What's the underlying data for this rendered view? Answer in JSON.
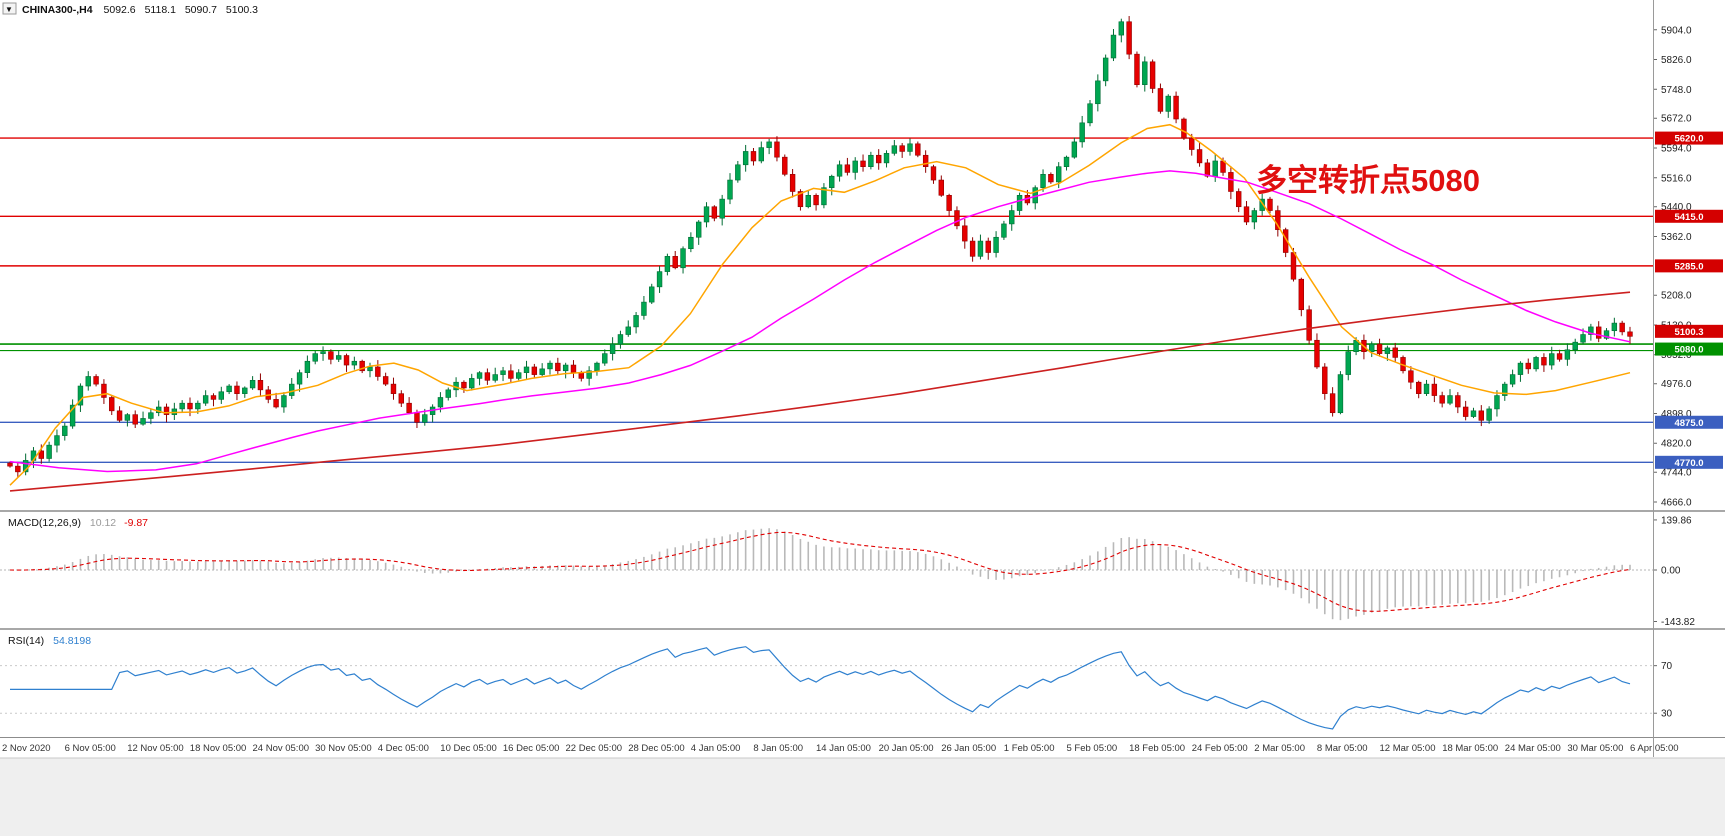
{
  "window": {
    "dropdown_icon": "▼",
    "symbol": "CHINA300-,H4",
    "open": "5092.6",
    "high": "5118.1",
    "low": "5090.7",
    "close": "5100.3"
  },
  "annotation": {
    "text": "多空转折点5080",
    "color": "#E01010"
  },
  "colors": {
    "bull": "#00A651",
    "bull_dark": "#006B33",
    "bear": "#E60000",
    "bear_dark": "#8F0000",
    "resistance_line": "#E00000",
    "pivot_line": "#009100",
    "support_line": "#3B5FC0",
    "macd_hist": "#B9B9B9",
    "macd_signal": "#E00000",
    "rsi_line": "#2F80CF"
  },
  "price_axis": {
    "labels": [
      "5904.0",
      "5826.0",
      "5748.0",
      "5672.0",
      "5594.0",
      "5516.0",
      "5440.0",
      "5362.0",
      "5208.0",
      "5130.0",
      "5052.0",
      "4976.0",
      "4898.0",
      "4820.0",
      "4744.0",
      "4666.0"
    ],
    "badges": [
      {
        "text": "5620.0",
        "price": 5620,
        "color": "#D40000",
        "dy": 0
      },
      {
        "text": "5415.0",
        "price": 5415,
        "color": "#D40000",
        "dy": 0
      },
      {
        "text": "5285.0",
        "price": 5285,
        "color": "#D40000",
        "dy": 0
      },
      {
        "text": "5100.3",
        "price": 5100.3,
        "color": "#D40000",
        "dy": -5
      },
      {
        "text": "5080.0",
        "price": 5080,
        "color": "#009100",
        "dy": 5
      },
      {
        "text": "4875.0",
        "price": 4875,
        "color": "#3B5FC0",
        "dy": 0
      },
      {
        "text": "4770.0",
        "price": 4770,
        "color": "#3B5FC0",
        "dy": 0
      }
    ]
  },
  "hlines": [
    {
      "price": 5620,
      "color": "#E00000",
      "width": 1.4
    },
    {
      "price": 5415,
      "color": "#E00000",
      "width": 1.4
    },
    {
      "price": 5285,
      "color": "#E00000",
      "width": 1.4
    },
    {
      "price": 5080,
      "color": "#009100",
      "width": 1.6
    },
    {
      "price": 5063,
      "color": "#009100",
      "width": 1.1
    },
    {
      "price": 4875,
      "color": "#3B5FC0",
      "width": 1.4
    },
    {
      "price": 4770,
      "color": "#3B5FC0",
      "width": 1.4
    }
  ],
  "time_axis": {
    "labels": [
      "2 Nov 2020",
      "6 Nov 05:00",
      "12 Nov 05:00",
      "18 Nov 05:00",
      "24 Nov 05:00",
      "30 Nov 05:00",
      "4 Dec 05:00",
      "10 Dec 05:00",
      "16 Dec 05:00",
      "22 Dec 05:00",
      "28 Dec 05:00",
      "4 Jan 05:00",
      "8 Jan 05:00",
      "14 Jan 05:00",
      "20 Jan 05:00",
      "26 Jan 05:00",
      "1 Feb 05:00",
      "5 Feb 05:00",
      "18 Feb 05:00",
      "24 Feb 05:00",
      "2 Mar 05:00",
      "8 Mar 05:00",
      "12 Mar 05:00",
      "18 Mar 05:00",
      "24 Mar 05:00",
      "30 Mar 05:00",
      "6 Apr 05:00"
    ]
  },
  "panels": {
    "macd": {
      "title": "MACD(12,26,9)",
      "value_main": "10.12",
      "value_signal": "-9.87",
      "axis": [
        {
          "text": "139.86",
          "value": 139.86
        },
        {
          "text": "0.00",
          "value": 0
        },
        {
          "text": "-143.82",
          "value": -143.82
        }
      ]
    },
    "rsi": {
      "title": "RSI(14)",
      "value": "54.8198"
    }
  },
  "chart_data": {
    "type": "candlestick",
    "symbol": "CHINA300-",
    "timeframe": "H4",
    "title": "CHINA300-,H4 5092.6 5118.1 5090.7 5100.3",
    "last_bar": {
      "open": 5092.6,
      "high": 5118.1,
      "low": 5090.7,
      "close": 5100.3
    },
    "x_range": [
      "2 Nov 2020",
      "6 Apr 05:00"
    ],
    "ylim": [
      4645,
      5982
    ],
    "open_first": 4768,
    "closes": [
      4760,
      4745,
      4775,
      4800,
      4780,
      4815,
      4840,
      4865,
      4920,
      4970,
      4995,
      4975,
      4940,
      4905,
      4880,
      4895,
      4870,
      4885,
      4900,
      4915,
      4895,
      4910,
      4925,
      4910,
      4925,
      4945,
      4935,
      4955,
      4970,
      4950,
      4965,
      4985,
      4960,
      4935,
      4915,
      4945,
      4975,
      5005,
      5035,
      5055,
      5060,
      5040,
      5050,
      5025,
      5035,
      5010,
      5020,
      4995,
      4975,
      4950,
      4925,
      4900,
      4875,
      4895,
      4915,
      4940,
      4960,
      4980,
      4965,
      4990,
      5005,
      4985,
      5000,
      5010,
      4990,
      5005,
      5020,
      5000,
      5015,
      5030,
      5010,
      5025,
      5005,
      4990,
      5010,
      5030,
      5055,
      5080,
      5105,
      5125,
      5155,
      5190,
      5230,
      5270,
      5310,
      5280,
      5330,
      5360,
      5400,
      5440,
      5410,
      5460,
      5510,
      5550,
      5585,
      5560,
      5595,
      5610,
      5570,
      5525,
      5480,
      5440,
      5470,
      5445,
      5490,
      5520,
      5550,
      5530,
      5560,
      5545,
      5575,
      5555,
      5580,
      5600,
      5585,
      5605,
      5575,
      5545,
      5510,
      5470,
      5430,
      5390,
      5350,
      5310,
      5350,
      5320,
      5360,
      5395,
      5430,
      5470,
      5450,
      5490,
      5525,
      5505,
      5545,
      5570,
      5610,
      5660,
      5710,
      5770,
      5830,
      5890,
      5925,
      5840,
      5760,
      5820,
      5750,
      5690,
      5730,
      5670,
      5620,
      5590,
      5555,
      5520,
      5560,
      5530,
      5480,
      5440,
      5400,
      5430,
      5460,
      5430,
      5380,
      5320,
      5250,
      5170,
      5090,
      5020,
      4950,
      4900,
      5000,
      5060,
      5090,
      5060,
      5080,
      5055,
      5070,
      5045,
      5010,
      4980,
      4950,
      4975,
      4945,
      4925,
      4945,
      4915,
      4890,
      4905,
      4880,
      4910,
      4945,
      4975,
      5000,
      5030,
      5015,
      5045,
      5025,
      5055,
      5040,
      5065,
      5085,
      5105,
      5125,
      5095,
      5115,
      5135,
      5112,
      5100.3
    ],
    "moving_averages": [
      {
        "name": "fast-ma",
        "color": "#FFA500",
        "width": 1.5,
        "points": [
          [
            0.0,
            4710
          ],
          [
            0.012,
            4760
          ],
          [
            0.028,
            4860
          ],
          [
            0.045,
            4940
          ],
          [
            0.06,
            4950
          ],
          [
            0.075,
            4925
          ],
          [
            0.095,
            4900
          ],
          [
            0.115,
            4902
          ],
          [
            0.135,
            4918
          ],
          [
            0.152,
            4942
          ],
          [
            0.17,
            4952
          ],
          [
            0.19,
            4972
          ],
          [
            0.207,
            5002
          ],
          [
            0.222,
            5022
          ],
          [
            0.237,
            5030
          ],
          [
            0.252,
            5012
          ],
          [
            0.267,
            4978
          ],
          [
            0.282,
            4958
          ],
          [
            0.305,
            4975
          ],
          [
            0.322,
            4990
          ],
          [
            0.342,
            5002
          ],
          [
            0.362,
            5008
          ],
          [
            0.382,
            5018
          ],
          [
            0.402,
            5075
          ],
          [
            0.42,
            5160
          ],
          [
            0.44,
            5290
          ],
          [
            0.458,
            5385
          ],
          [
            0.476,
            5455
          ],
          [
            0.496,
            5488
          ],
          [
            0.515,
            5478
          ],
          [
            0.534,
            5508
          ],
          [
            0.552,
            5542
          ],
          [
            0.572,
            5558
          ],
          [
            0.59,
            5542
          ],
          [
            0.61,
            5498
          ],
          [
            0.63,
            5475
          ],
          [
            0.648,
            5502
          ],
          [
            0.666,
            5548
          ],
          [
            0.686,
            5608
          ],
          [
            0.702,
            5645
          ],
          [
            0.716,
            5655
          ],
          [
            0.726,
            5635
          ],
          [
            0.742,
            5585
          ],
          [
            0.762,
            5515
          ],
          [
            0.782,
            5395
          ],
          [
            0.802,
            5255
          ],
          [
            0.822,
            5125
          ],
          [
            0.84,
            5058
          ],
          [
            0.858,
            5028
          ],
          [
            0.878,
            4998
          ],
          [
            0.896,
            4972
          ],
          [
            0.916,
            4952
          ],
          [
            0.936,
            4948
          ],
          [
            0.954,
            4958
          ],
          [
            0.976,
            4980
          ],
          [
            1.0,
            5005
          ]
        ]
      },
      {
        "name": "medium-ma",
        "color": "#FF00FF",
        "width": 1.5,
        "points": [
          [
            0.0,
            4772
          ],
          [
            0.03,
            4756
          ],
          [
            0.06,
            4746
          ],
          [
            0.09,
            4750
          ],
          [
            0.115,
            4766
          ],
          [
            0.135,
            4790
          ],
          [
            0.152,
            4810
          ],
          [
            0.175,
            4836
          ],
          [
            0.19,
            4852
          ],
          [
            0.21,
            4870
          ],
          [
            0.228,
            4886
          ],
          [
            0.25,
            4900
          ],
          [
            0.266,
            4910
          ],
          [
            0.29,
            4924
          ],
          [
            0.305,
            4934
          ],
          [
            0.322,
            4944
          ],
          [
            0.342,
            4954
          ],
          [
            0.362,
            4964
          ],
          [
            0.382,
            4978
          ],
          [
            0.402,
            5000
          ],
          [
            0.42,
            5024
          ],
          [
            0.44,
            5062
          ],
          [
            0.458,
            5098
          ],
          [
            0.476,
            5148
          ],
          [
            0.496,
            5198
          ],
          [
            0.515,
            5248
          ],
          [
            0.534,
            5294
          ],
          [
            0.552,
            5334
          ],
          [
            0.572,
            5378
          ],
          [
            0.59,
            5412
          ],
          [
            0.61,
            5440
          ],
          [
            0.63,
            5464
          ],
          [
            0.648,
            5484
          ],
          [
            0.666,
            5504
          ],
          [
            0.686,
            5518
          ],
          [
            0.702,
            5528
          ],
          [
            0.716,
            5534
          ],
          [
            0.732,
            5528
          ],
          [
            0.75,
            5514
          ],
          [
            0.764,
            5504
          ],
          [
            0.782,
            5478
          ],
          [
            0.802,
            5448
          ],
          [
            0.822,
            5408
          ],
          [
            0.84,
            5368
          ],
          [
            0.858,
            5328
          ],
          [
            0.878,
            5288
          ],
          [
            0.896,
            5248
          ],
          [
            0.916,
            5208
          ],
          [
            0.936,
            5168
          ],
          [
            0.954,
            5138
          ],
          [
            0.976,
            5108
          ],
          [
            1.0,
            5086
          ]
        ]
      },
      {
        "name": "slow-ma",
        "color": "#CC2020",
        "width": 1.6,
        "points": [
          [
            0.0,
            4695
          ],
          [
            0.05,
            4714
          ],
          [
            0.1,
            4733
          ],
          [
            0.15,
            4753
          ],
          [
            0.2,
            4774
          ],
          [
            0.25,
            4794
          ],
          [
            0.3,
            4815
          ],
          [
            0.35,
            4840
          ],
          [
            0.4,
            4866
          ],
          [
            0.45,
            4892
          ],
          [
            0.5,
            4920
          ],
          [
            0.55,
            4950
          ],
          [
            0.6,
            4984
          ],
          [
            0.65,
            5018
          ],
          [
            0.7,
            5054
          ],
          [
            0.75,
            5088
          ],
          [
            0.8,
            5120
          ],
          [
            0.85,
            5148
          ],
          [
            0.9,
            5174
          ],
          [
            0.95,
            5196
          ],
          [
            1.0,
            5216
          ]
        ]
      }
    ],
    "horizontal_levels": {
      "resistance": [
        5620,
        5415,
        5285
      ],
      "pivot": 5080,
      "support": [
        4875,
        4770
      ]
    },
    "indicators": {
      "macd": {
        "params": [
          12,
          26,
          9
        ],
        "current_main": 10.12,
        "current_signal": -9.87,
        "scale_max": 139.86,
        "scale_min": -143.82
      },
      "rsi": {
        "period": 14,
        "current": 54.8198,
        "levels": [
          70,
          30
        ]
      }
    }
  }
}
